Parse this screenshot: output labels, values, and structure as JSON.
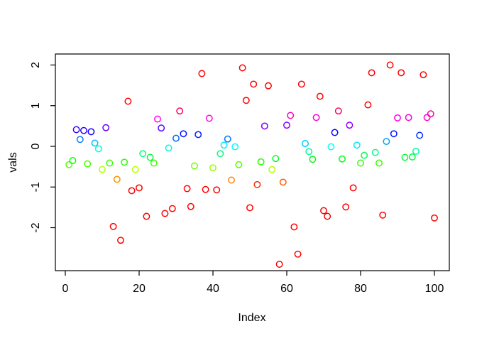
{
  "figure": {
    "background": "#FFFFFF",
    "box_color": "#000000",
    "text_color": "#000000"
  },
  "chart_data": {
    "type": "scatter",
    "title": "",
    "xlabel": "Index",
    "ylabel": "vals",
    "x_ticks": [
      0,
      20,
      40,
      60,
      80,
      100
    ],
    "y_ticks": [
      -2,
      -1,
      0,
      1,
      2
    ],
    "xlim": [
      -2.5,
      104
    ],
    "ylim": [
      -3.05,
      2.27
    ],
    "grid": false,
    "legend_position": "none",
    "marker": "open-circle",
    "points": [
      {
        "x": 1,
        "y": -0.45,
        "color": "#59FF00"
      },
      {
        "x": 2,
        "y": -0.35,
        "color": "#0DFF00"
      },
      {
        "x": 3,
        "y": 0.41,
        "color": "#3B00FF"
      },
      {
        "x": 4,
        "y": 0.17,
        "color": "#007DFF"
      },
      {
        "x": 5,
        "y": 0.39,
        "color": "#2B00FF"
      },
      {
        "x": 6,
        "y": -0.43,
        "color": "#4AFF00"
      },
      {
        "x": 7,
        "y": 0.36,
        "color": "#1400FF"
      },
      {
        "x": 8,
        "y": 0.08,
        "color": "#00C2FF"
      },
      {
        "x": 9,
        "y": -0.06,
        "color": "#00FFD1"
      },
      {
        "x": 10,
        "y": -0.57,
        "color": "#B5FF00"
      },
      {
        "x": 11,
        "y": 0.46,
        "color": "#6100FF"
      },
      {
        "x": 12,
        "y": -0.41,
        "color": "#3BFF00"
      },
      {
        "x": 13,
        "y": -1.97,
        "color": "#FF0000"
      },
      {
        "x": 14,
        "y": -0.81,
        "color": "#FF9100"
      },
      {
        "x": 15,
        "y": -2.31,
        "color": "#FF0000"
      },
      {
        "x": 16,
        "y": -0.39,
        "color": "#2BFF00"
      },
      {
        "x": 17,
        "y": 1.11,
        "color": "#FF0000"
      },
      {
        "x": 18,
        "y": -1.09,
        "color": "#FF0000"
      },
      {
        "x": 19,
        "y": -0.57,
        "color": "#B5FF00"
      },
      {
        "x": 20,
        "y": -1.02,
        "color": "#FF0000"
      },
      {
        "x": 21,
        "y": -0.18,
        "color": "#00FF75"
      },
      {
        "x": 22,
        "y": -1.72,
        "color": "#FF0000"
      },
      {
        "x": 23,
        "y": -0.27,
        "color": "#00FF30"
      },
      {
        "x": 24,
        "y": -0.41,
        "color": "#3BFF00"
      },
      {
        "x": 25,
        "y": 0.67,
        "color": "#FF00FC"
      },
      {
        "x": 26,
        "y": 0.45,
        "color": "#5900FF"
      },
      {
        "x": 27,
        "y": -1.65,
        "color": "#FF0000"
      },
      {
        "x": 28,
        "y": -0.04,
        "color": "#00FFE0"
      },
      {
        "x": 29,
        "y": -1.53,
        "color": "#FF0000"
      },
      {
        "x": 30,
        "y": 0.2,
        "color": "#0066FF"
      },
      {
        "x": 31,
        "y": 0.87,
        "color": "#FF0063"
      },
      {
        "x": 32,
        "y": 0.31,
        "color": "#0012FF"
      },
      {
        "x": 33,
        "y": -1.04,
        "color": "#FF0000"
      },
      {
        "x": 34,
        "y": -1.48,
        "color": "#FF0000"
      },
      {
        "x": 35,
        "y": -0.48,
        "color": "#70FF00"
      },
      {
        "x": 36,
        "y": 0.29,
        "color": "#0021FF"
      },
      {
        "x": 37,
        "y": 1.79,
        "color": "#FF0000"
      },
      {
        "x": 38,
        "y": -1.06,
        "color": "#FF0000"
      },
      {
        "x": 39,
        "y": 0.69,
        "color": "#FF00ED"
      },
      {
        "x": 40,
        "y": -0.53,
        "color": "#96FF00"
      },
      {
        "x": 41,
        "y": -1.07,
        "color": "#FF0000"
      },
      {
        "x": 42,
        "y": -0.18,
        "color": "#00FF75"
      },
      {
        "x": 43,
        "y": 0.03,
        "color": "#00E8FF"
      },
      {
        "x": 44,
        "y": 0.18,
        "color": "#0075FF"
      },
      {
        "x": 45,
        "y": -0.83,
        "color": "#FF8200"
      },
      {
        "x": 46,
        "y": -0.01,
        "color": "#00FFF7"
      },
      {
        "x": 47,
        "y": -0.45,
        "color": "#59FF00"
      },
      {
        "x": 48,
        "y": 1.93,
        "color": "#FF0000"
      },
      {
        "x": 49,
        "y": 1.13,
        "color": "#FF0000"
      },
      {
        "x": 50,
        "y": -1.51,
        "color": "#FF0000"
      },
      {
        "x": 51,
        "y": 1.53,
        "color": "#FF0000"
      },
      {
        "x": 52,
        "y": -0.94,
        "color": "#FF2E00"
      },
      {
        "x": 53,
        "y": -0.38,
        "color": "#24FF00"
      },
      {
        "x": 54,
        "y": 0.5,
        "color": "#8000FF"
      },
      {
        "x": 55,
        "y": 1.49,
        "color": "#FF0000"
      },
      {
        "x": 56,
        "y": -0.57,
        "color": "#B5FF00"
      },
      {
        "x": 57,
        "y": -0.3,
        "color": "#00FF1A"
      },
      {
        "x": 58,
        "y": -2.9,
        "color": "#FF0000"
      },
      {
        "x": 59,
        "y": -0.88,
        "color": "#FF5C00"
      },
      {
        "x": 60,
        "y": 0.52,
        "color": "#8F00FF"
      },
      {
        "x": 61,
        "y": 0.76,
        "color": "#FF00B8"
      },
      {
        "x": 62,
        "y": -1.98,
        "color": "#FF0000"
      },
      {
        "x": 63,
        "y": -2.65,
        "color": "#FF0000"
      },
      {
        "x": 64,
        "y": 1.53,
        "color": "#FF0000"
      },
      {
        "x": 65,
        "y": 0.07,
        "color": "#00C9FF"
      },
      {
        "x": 66,
        "y": -0.13,
        "color": "#00FF9C"
      },
      {
        "x": 67,
        "y": -0.32,
        "color": "#00FF0A"
      },
      {
        "x": 68,
        "y": 0.71,
        "color": "#FF00DE"
      },
      {
        "x": 69,
        "y": 1.23,
        "color": "#FF0000"
      },
      {
        "x": 70,
        "y": -1.58,
        "color": "#FF0000"
      },
      {
        "x": 71,
        "y": -1.72,
        "color": "#FF0000"
      },
      {
        "x": 72,
        "y": -0.01,
        "color": "#00FFF7"
      },
      {
        "x": 73,
        "y": 0.34,
        "color": "#0500FF"
      },
      {
        "x": 74,
        "y": 0.87,
        "color": "#FF0063"
      },
      {
        "x": 75,
        "y": -0.31,
        "color": "#00FF12"
      },
      {
        "x": 76,
        "y": -1.49,
        "color": "#FF0000"
      },
      {
        "x": 77,
        "y": 0.52,
        "color": "#8F00FF"
      },
      {
        "x": 78,
        "y": -1.02,
        "color": "#FF0000"
      },
      {
        "x": 79,
        "y": 0.03,
        "color": "#00E8FF"
      },
      {
        "x": 80,
        "y": -0.41,
        "color": "#3BFF00"
      },
      {
        "x": 81,
        "y": -0.22,
        "color": "#00FF57"
      },
      {
        "x": 82,
        "y": 1.02,
        "color": "#FF0000"
      },
      {
        "x": 83,
        "y": 1.81,
        "color": "#FF0000"
      },
      {
        "x": 84,
        "y": -0.15,
        "color": "#00FF8C"
      },
      {
        "x": 85,
        "y": -0.41,
        "color": "#3BFF00"
      },
      {
        "x": 86,
        "y": -1.69,
        "color": "#FF0000"
      },
      {
        "x": 87,
        "y": 0.12,
        "color": "#00A3FF"
      },
      {
        "x": 88,
        "y": 2.0,
        "color": "#FF0000"
      },
      {
        "x": 89,
        "y": 0.31,
        "color": "#0012FF"
      },
      {
        "x": 90,
        "y": 0.7,
        "color": "#FF00E6"
      },
      {
        "x": 91,
        "y": 1.81,
        "color": "#FF0000"
      },
      {
        "x": 92,
        "y": -0.27,
        "color": "#00FF30"
      },
      {
        "x": 93,
        "y": 0.71,
        "color": "#FF00DE"
      },
      {
        "x": 94,
        "y": -0.26,
        "color": "#00FF38"
      },
      {
        "x": 95,
        "y": -0.12,
        "color": "#00FFA3"
      },
      {
        "x": 96,
        "y": 0.27,
        "color": "#0030FF"
      },
      {
        "x": 97,
        "y": 1.76,
        "color": "#FF0000"
      },
      {
        "x": 98,
        "y": 0.71,
        "color": "#FF00DE"
      },
      {
        "x": 99,
        "y": 0.8,
        "color": "#FF0099"
      },
      {
        "x": 100,
        "y": -1.76,
        "color": "#FF0000"
      }
    ]
  }
}
